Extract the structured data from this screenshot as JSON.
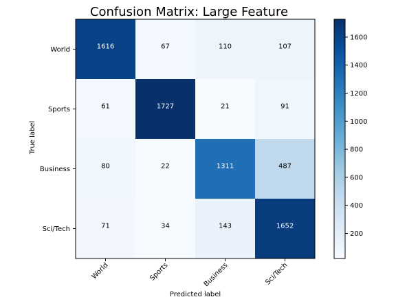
{
  "chart_data": {
    "type": "heatmap",
    "title": "Confusion Matrix: Large Feature",
    "xlabel": "Predicted label",
    "ylabel": "True label",
    "x_categories": [
      "World",
      "Sports",
      "Business",
      "Sci/Tech"
    ],
    "y_categories": [
      "World",
      "Sports",
      "Business",
      "Sci/Tech"
    ],
    "values": [
      [
        1616,
        67,
        110,
        107
      ],
      [
        61,
        1727,
        21,
        91
      ],
      [
        80,
        22,
        1311,
        487
      ],
      [
        71,
        34,
        143,
        1652
      ]
    ],
    "colormap": "Blues",
    "colorbar": {
      "ticks": [
        200,
        400,
        600,
        800,
        1000,
        1200,
        1400,
        1600
      ]
    }
  }
}
